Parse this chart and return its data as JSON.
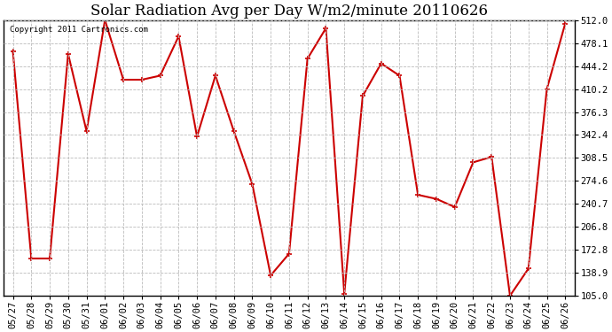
{
  "title": "Solar Radiation Avg per Day W/m2/minute 20110626",
  "copyright": "Copyright 2011 Cartronics.com",
  "dates": [
    "05/27",
    "05/28",
    "05/29",
    "05/30",
    "05/31",
    "06/01",
    "06/02",
    "06/03",
    "06/04",
    "06/05",
    "06/06",
    "06/07",
    "06/08",
    "06/09",
    "06/10",
    "06/11",
    "06/12",
    "06/13",
    "06/14",
    "06/15",
    "06/16",
    "06/17",
    "06/18",
    "06/19",
    "06/20",
    "06/21",
    "06/22",
    "06/23",
    "06/24",
    "06/25",
    "06/26"
  ],
  "values": [
    466,
    160,
    160,
    462,
    348,
    512,
    424,
    424,
    430,
    488,
    340,
    430,
    348,
    270,
    135,
    167,
    455,
    500,
    108,
    400,
    448,
    430,
    254,
    248,
    236,
    302,
    310,
    105,
    145,
    410,
    507
  ],
  "ylim_min": 105.0,
  "ylim_max": 512.0,
  "yticks": [
    105.0,
    138.9,
    172.8,
    206.8,
    240.7,
    274.6,
    308.5,
    342.4,
    376.3,
    410.2,
    444.2,
    478.1,
    512.0
  ],
  "line_color": "#cc0000",
  "marker": "+",
  "marker_size": 5,
  "marker_linewidth": 1.2,
  "line_width": 1.5,
  "grid_color": "#bbbbbb",
  "bg_color": "#ffffff",
  "title_fontsize": 12,
  "tick_fontsize": 7.5,
  "copyright_fontsize": 6.5
}
